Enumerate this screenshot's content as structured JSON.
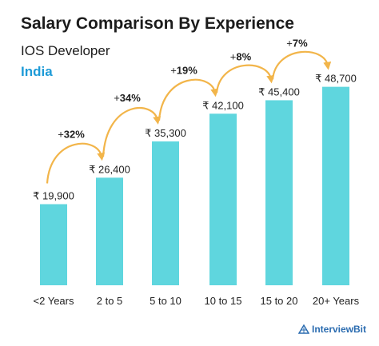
{
  "colors": {
    "bar": "#5fd6de",
    "arrow": "#f2b54a",
    "region": "#1e9bd7"
  },
  "chart_data": {
    "type": "bar",
    "title": "Salary Comparison By Experience",
    "subtitle": "IOS Developer",
    "region": "India",
    "categories": [
      "<2 Years",
      "2 to 5",
      "5 to 10",
      "10 to 15",
      "15 to 20",
      "20+ Years"
    ],
    "values": [
      19900,
      26400,
      35300,
      42100,
      45400,
      48700
    ],
    "value_labels": [
      "₹ 19,900",
      "₹ 26,400",
      "₹ 35,300",
      "₹ 42,100",
      "₹ 45,400",
      "₹ 48,700"
    ],
    "growth_labels": [
      {
        "sign": "+",
        "pct": "32%"
      },
      {
        "sign": "+",
        "pct": "34%"
      },
      {
        "sign": "+",
        "pct": "19%"
      },
      {
        "sign": "+",
        "pct": "8%"
      },
      {
        "sign": "+",
        "pct": "7%"
      }
    ],
    "ylim": [
      0,
      50000
    ]
  },
  "branding": {
    "logo_text": "InterviewBit"
  }
}
